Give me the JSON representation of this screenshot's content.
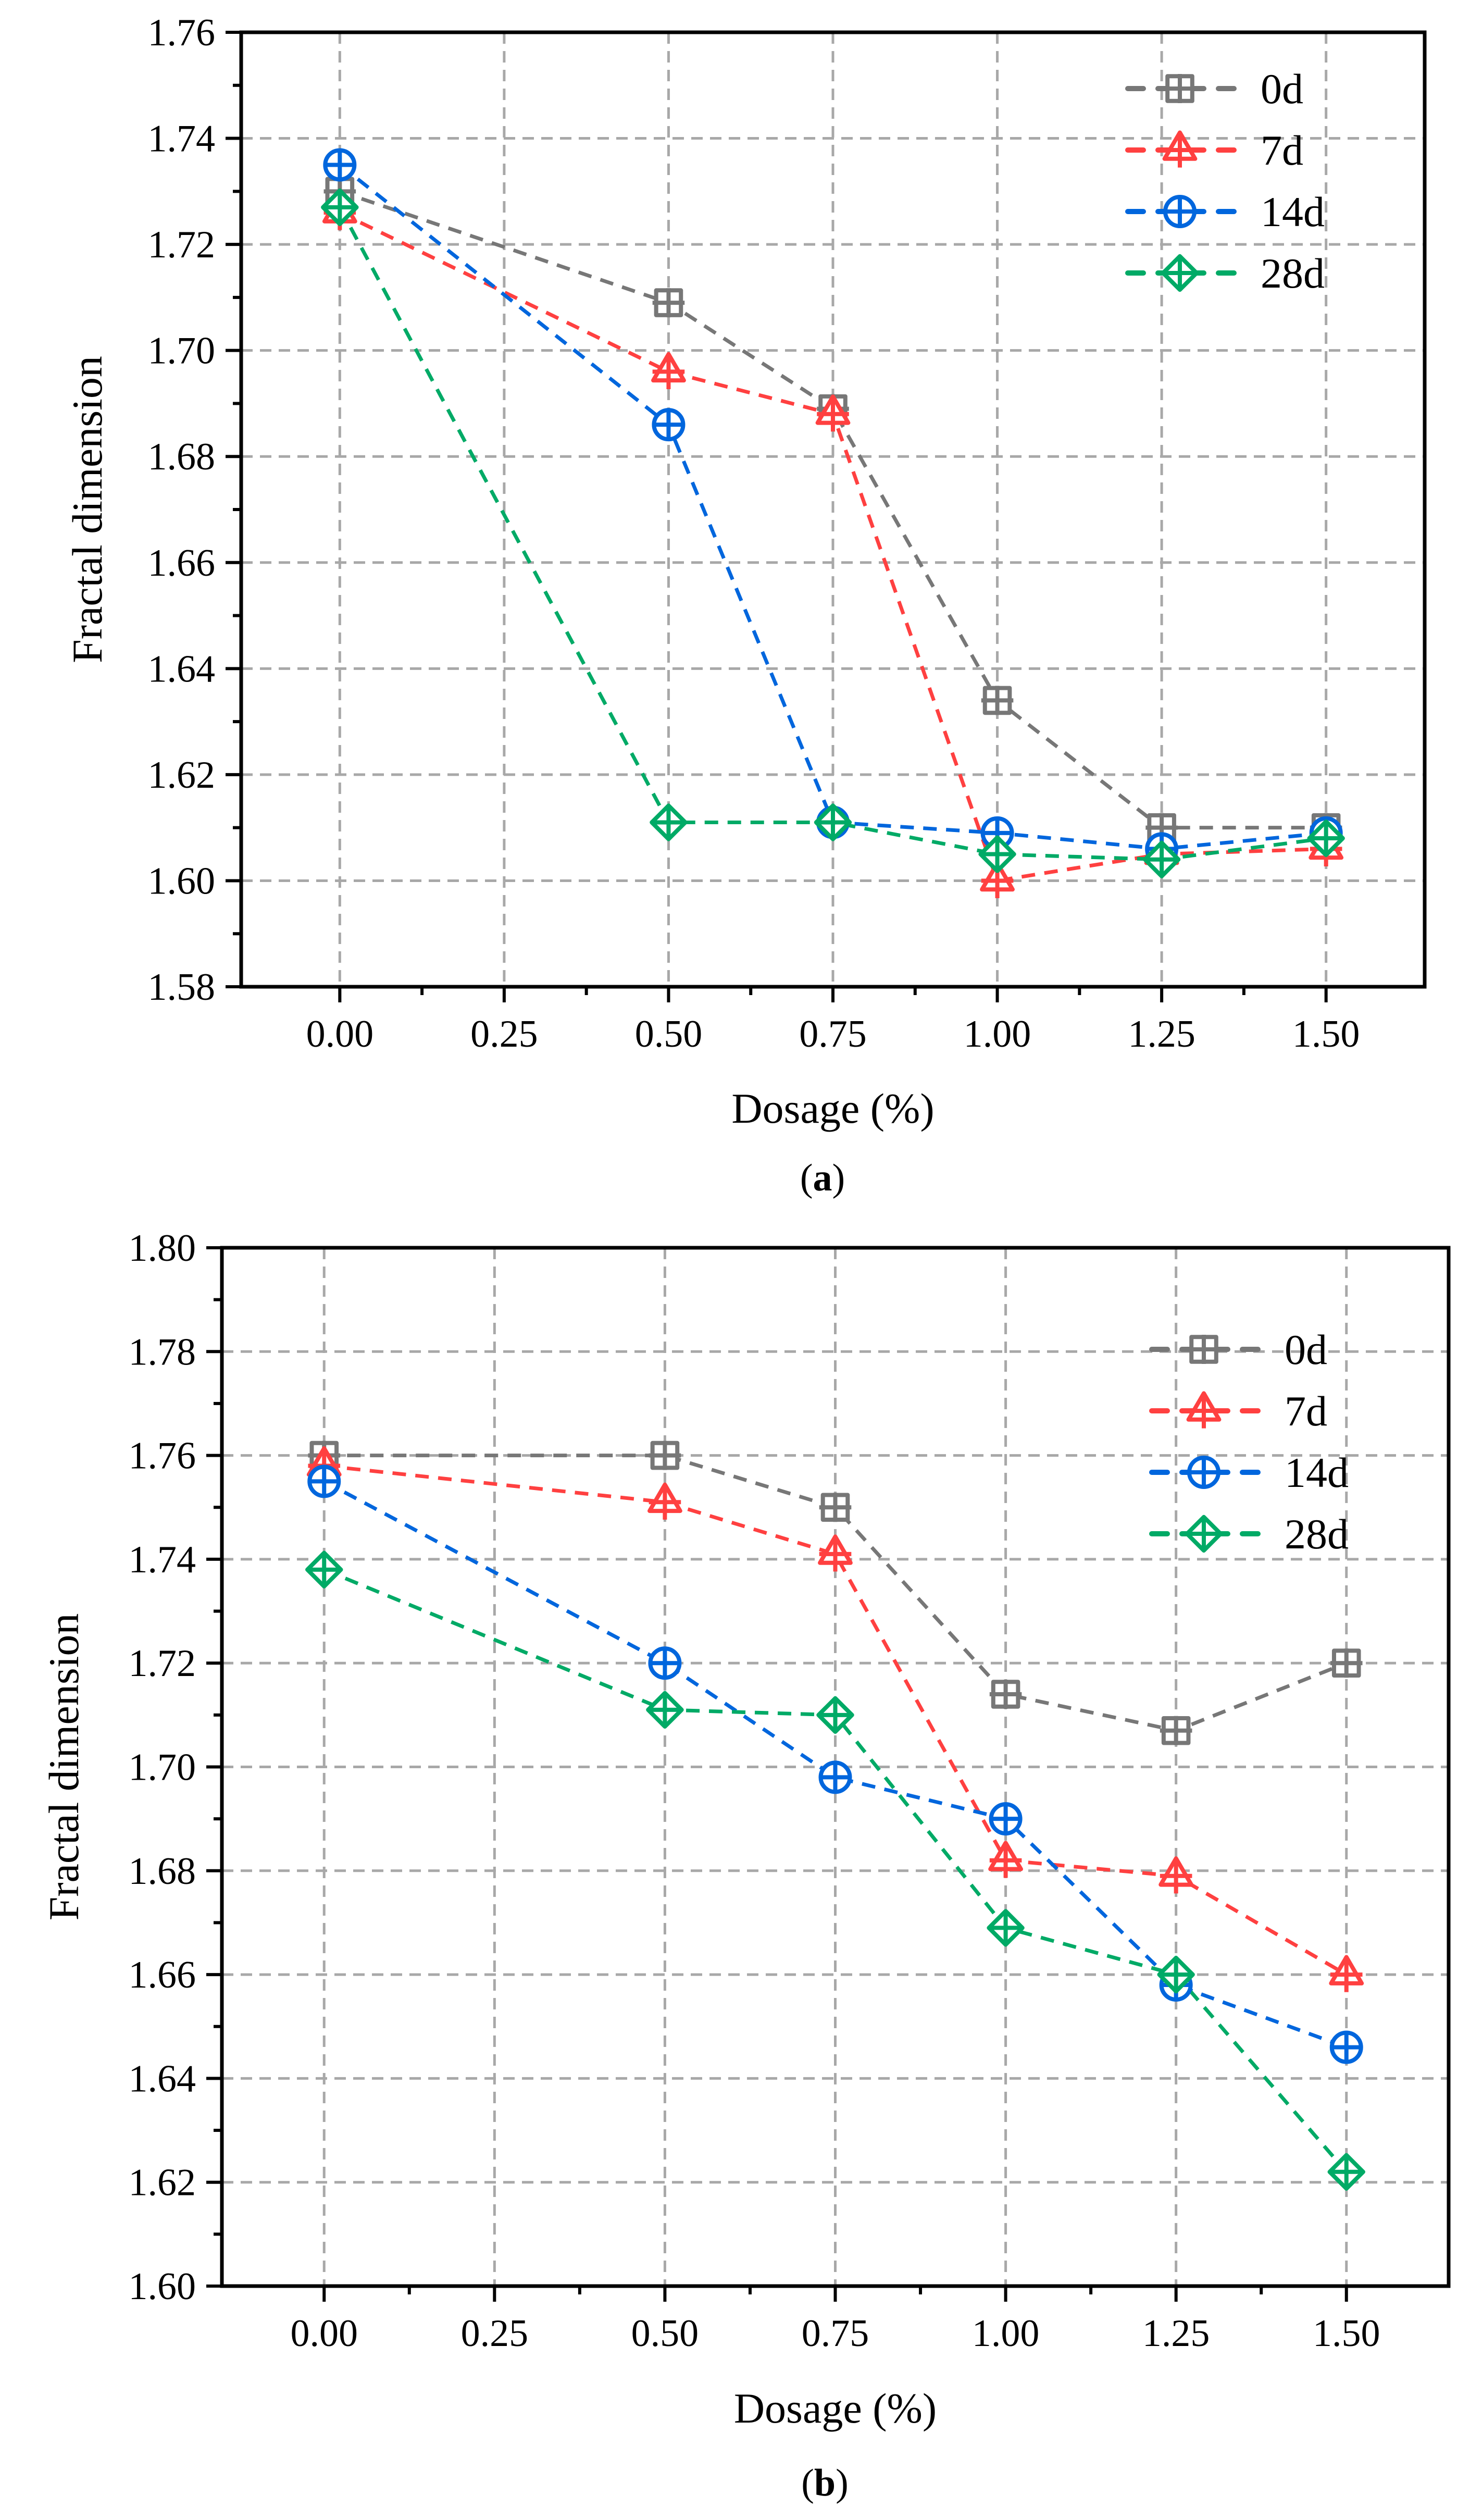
{
  "chart_data": [
    {
      "type": "line",
      "caption": "(a)",
      "caption_letter": "a",
      "xlabel": "Dosage (%)",
      "ylabel": "Fractal dimension",
      "xlim": [
        -0.15,
        1.65
      ],
      "ylim": [
        1.58,
        1.76
      ],
      "xticks": [
        "0.00",
        "0.25",
        "0.50",
        "0.75",
        "1.00",
        "1.25",
        "1.50"
      ],
      "yticks": [
        "1.58",
        "1.60",
        "1.62",
        "1.64",
        "1.66",
        "1.68",
        "1.70",
        "1.72",
        "1.74",
        "1.76"
      ],
      "grid": true,
      "legend_position": "top-right",
      "x": [
        0,
        0.5,
        0.75,
        1.0,
        1.25,
        1.5
      ],
      "series": [
        {
          "name": "0d",
          "marker": "square",
          "color": "#777777",
          "values": [
            1.73,
            1.709,
            1.689,
            1.634,
            1.61,
            1.61
          ]
        },
        {
          "name": "7d",
          "marker": "triangle",
          "color": "#FF4040",
          "values": [
            1.726,
            1.696,
            1.688,
            1.6,
            1.605,
            1.606
          ]
        },
        {
          "name": "14d",
          "marker": "circle",
          "color": "#0066DD",
          "values": [
            1.735,
            1.686,
            1.611,
            1.609,
            1.606,
            1.609
          ]
        },
        {
          "name": "28d",
          "marker": "diamond",
          "color": "#00AA66",
          "values": [
            1.727,
            1.611,
            1.611,
            1.605,
            1.604,
            1.608
          ]
        }
      ]
    },
    {
      "type": "line",
      "caption": "(b)",
      "caption_letter": "b",
      "xlabel": "Dosage (%)",
      "ylabel": "Fractal dimension",
      "xlim": [
        -0.15,
        1.65
      ],
      "ylim": [
        1.6,
        1.8
      ],
      "xticks": [
        "0.00",
        "0.25",
        "0.50",
        "0.75",
        "1.00",
        "1.25",
        "1.50"
      ],
      "yticks": [
        "1.60",
        "1.62",
        "1.64",
        "1.66",
        "1.68",
        "1.70",
        "1.72",
        "1.74",
        "1.76",
        "1.78",
        "1.80"
      ],
      "grid": true,
      "legend_position": "top-right",
      "x": [
        0,
        0.5,
        0.75,
        1.0,
        1.25,
        1.5
      ],
      "series": [
        {
          "name": "0d",
          "marker": "square",
          "color": "#777777",
          "values": [
            1.76,
            1.76,
            1.75,
            1.714,
            1.707,
            1.72
          ]
        },
        {
          "name": "7d",
          "marker": "triangle",
          "color": "#FF4040",
          "values": [
            1.758,
            1.751,
            1.741,
            1.682,
            1.679,
            1.66
          ]
        },
        {
          "name": "14d",
          "marker": "circle",
          "color": "#0066DD",
          "values": [
            1.755,
            1.72,
            1.698,
            1.69,
            1.658,
            1.646
          ]
        },
        {
          "name": "28d",
          "marker": "diamond",
          "color": "#00AA66",
          "values": [
            1.738,
            1.711,
            1.71,
            1.669,
            1.66,
            1.622
          ]
        }
      ]
    }
  ]
}
